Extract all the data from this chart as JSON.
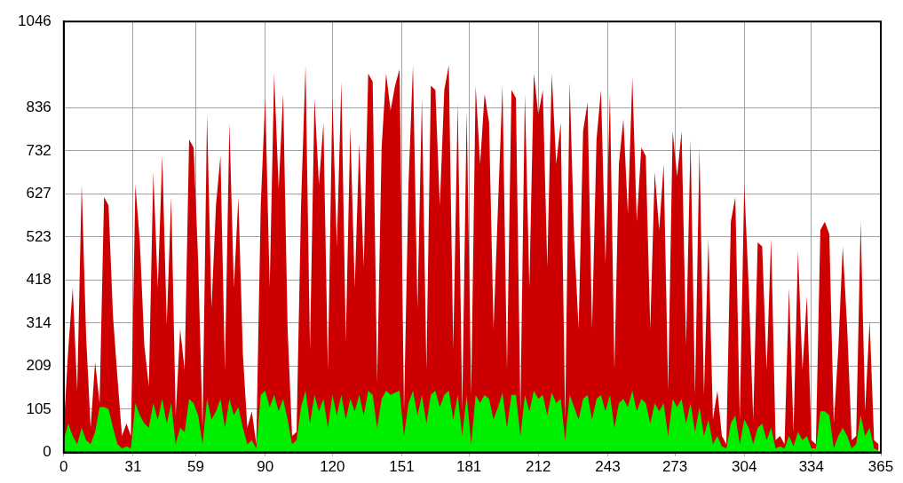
{
  "chart_data": {
    "type": "area",
    "xlim": [
      0,
      365
    ],
    "xticks": [
      0,
      31,
      59,
      90,
      120,
      151,
      181,
      212,
      243,
      273,
      304,
      334,
      365
    ],
    "ylim": [
      0,
      1046
    ],
    "yticks": [
      0,
      105,
      209,
      314,
      418,
      523,
      627,
      732,
      836,
      1046
    ],
    "grid": true,
    "legend": false,
    "x": [
      0,
      2,
      4,
      6,
      8,
      10,
      12,
      14,
      16,
      18,
      20,
      22,
      24,
      26,
      28,
      30,
      32,
      34,
      36,
      38,
      40,
      42,
      44,
      46,
      48,
      50,
      52,
      54,
      56,
      58,
      60,
      62,
      64,
      66,
      68,
      70,
      72,
      74,
      76,
      78,
      80,
      82,
      84,
      86,
      88,
      90,
      92,
      94,
      96,
      98,
      100,
      102,
      104,
      106,
      108,
      110,
      112,
      114,
      116,
      118,
      120,
      122,
      124,
      126,
      128,
      130,
      132,
      134,
      136,
      138,
      140,
      142,
      144,
      146,
      148,
      150,
      152,
      154,
      156,
      158,
      160,
      162,
      164,
      166,
      168,
      170,
      172,
      174,
      176,
      178,
      180,
      182,
      184,
      186,
      188,
      190,
      192,
      194,
      196,
      198,
      200,
      202,
      204,
      206,
      208,
      210,
      212,
      214,
      216,
      218,
      220,
      222,
      224,
      226,
      228,
      230,
      232,
      234,
      236,
      238,
      240,
      242,
      244,
      246,
      248,
      250,
      252,
      254,
      256,
      258,
      260,
      262,
      264,
      266,
      268,
      270,
      272,
      274,
      276,
      278,
      280,
      282,
      284,
      286,
      288,
      290,
      292,
      294,
      296,
      298,
      300,
      302,
      304,
      306,
      308,
      310,
      312,
      314,
      316,
      318,
      320,
      322,
      324,
      326,
      328,
      330,
      332,
      334,
      336,
      338,
      340,
      342,
      344,
      346,
      348,
      350,
      352,
      354,
      356,
      358,
      360,
      362,
      364
    ],
    "series": [
      {
        "color": "#cc0000",
        "values": [
          60,
          250,
          400,
          150,
          650,
          280,
          60,
          220,
          120,
          620,
          600,
          330,
          180,
          40,
          70,
          40,
          650,
          510,
          260,
          160,
          680,
          400,
          720,
          310,
          620,
          90,
          300,
          200,
          760,
          740,
          470,
          60,
          820,
          350,
          600,
          720,
          200,
          800,
          400,
          620,
          240,
          60,
          100,
          20,
          600,
          860,
          400,
          920,
          640,
          870,
          300,
          40,
          50,
          600,
          940,
          250,
          860,
          650,
          800,
          200,
          860,
          500,
          900,
          270,
          790,
          400,
          750,
          450,
          920,
          900,
          170,
          740,
          920,
          830,
          890,
          930,
          100,
          650,
          940,
          350,
          860,
          200,
          890,
          880,
          600,
          880,
          940,
          250,
          850,
          100,
          830,
          140,
          890,
          700,
          870,
          800,
          300,
          600,
          890,
          200,
          880,
          860,
          100,
          870,
          400,
          920,
          820,
          880,
          450,
          920,
          700,
          800,
          80,
          900,
          520,
          300,
          780,
          850,
          300,
          760,
          880,
          460,
          870,
          200,
          700,
          810,
          580,
          910,
          560,
          740,
          720,
          300,
          680,
          540,
          700,
          150,
          780,
          670,
          780,
          260,
          760,
          140,
          740,
          140,
          520,
          80,
          150,
          40,
          20,
          560,
          620,
          80,
          650,
          400,
          80,
          510,
          500,
          200,
          520,
          30,
          40,
          20,
          400,
          50,
          490,
          200,
          380,
          30,
          20,
          540,
          560,
          530,
          70,
          250,
          500,
          300,
          30,
          40,
          560,
          100,
          320,
          30,
          20
        ]
      },
      {
        "color": "#00ee00",
        "values": [
          30,
          70,
          40,
          20,
          60,
          30,
          20,
          50,
          110,
          110,
          105,
          60,
          20,
          10,
          15,
          10,
          120,
          90,
          70,
          60,
          120,
          80,
          130,
          70,
          120,
          20,
          60,
          50,
          130,
          120,
          90,
          20,
          130,
          80,
          100,
          130,
          60,
          130,
          90,
          110,
          60,
          20,
          30,
          10,
          140,
          150,
          110,
          140,
          100,
          130,
          80,
          20,
          30,
          110,
          150,
          70,
          140,
          100,
          130,
          60,
          140,
          90,
          140,
          80,
          130,
          100,
          140,
          90,
          150,
          140,
          60,
          130,
          150,
          140,
          145,
          150,
          40,
          120,
          150,
          90,
          140,
          70,
          140,
          150,
          110,
          140,
          150,
          80,
          140,
          40,
          140,
          20,
          140,
          120,
          140,
          130,
          80,
          110,
          145,
          60,
          140,
          140,
          40,
          140,
          100,
          150,
          130,
          140,
          90,
          145,
          120,
          130,
          30,
          140,
          110,
          80,
          130,
          140,
          80,
          130,
          140,
          100,
          140,
          60,
          120,
          130,
          110,
          150,
          100,
          130,
          120,
          70,
          120,
          100,
          120,
          40,
          130,
          110,
          130,
          70,
          120,
          50,
          110,
          40,
          80,
          20,
          40,
          15,
          10,
          70,
          90,
          20,
          80,
          60,
          20,
          60,
          70,
          30,
          60,
          10,
          15,
          10,
          40,
          15,
          50,
          30,
          40,
          10,
          10,
          100,
          100,
          90,
          10,
          40,
          60,
          40,
          10,
          20,
          90,
          40,
          60,
          10,
          5
        ]
      }
    ]
  }
}
